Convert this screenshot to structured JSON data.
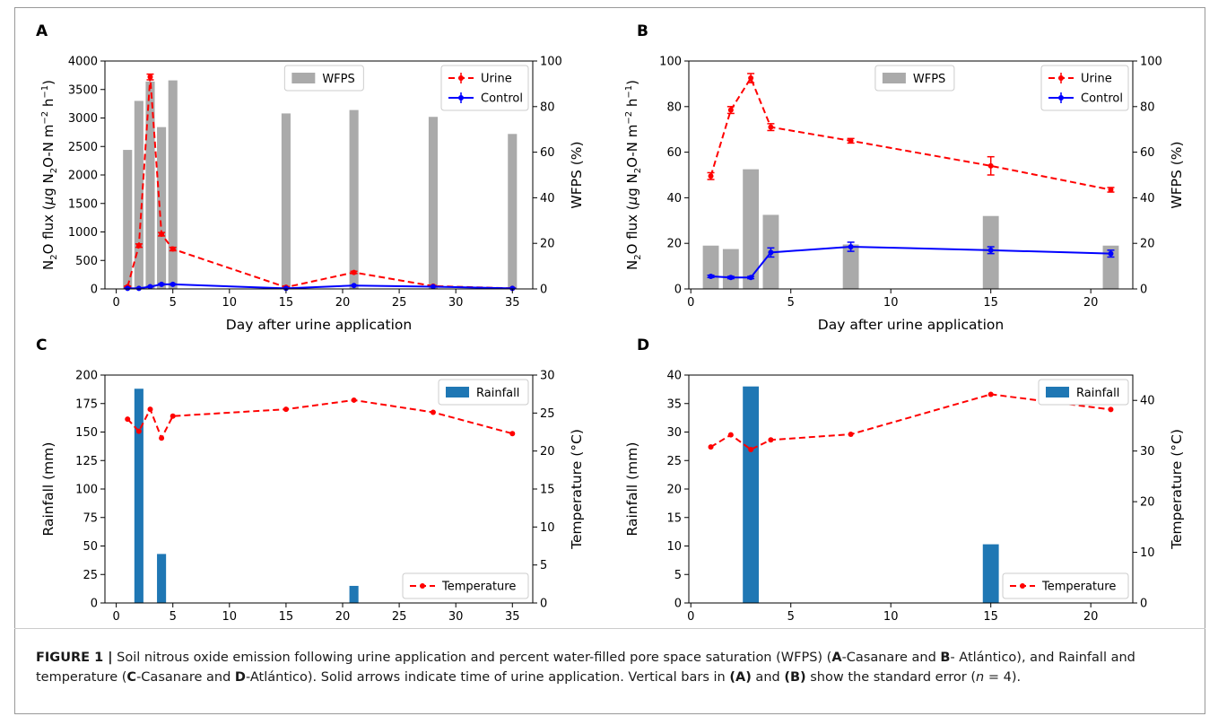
{
  "caption": {
    "label": "FIGURE 1 |",
    "text_1": " Soil nitrous oxide emission following urine application and percent water-filled pore space saturation (WFPS) (",
    "a": "A",
    "text_2": "-Casanare and ",
    "b": "B",
    "text_3": "- Atlántico), and Rainfall and temperature (",
    "c": "C",
    "text_4": "-Casanare and ",
    "d": "D",
    "text_5": "-Atlántico). Solid arrows indicate time of urine application. Vertical bars in ",
    "pa": "(A)",
    "text_6": " and ",
    "pb": "(B)",
    "text_7": " show the standard error (",
    "n": "n",
    "text_8": " = 4)."
  },
  "chart_data": [
    {
      "panel": "A",
      "type": "line",
      "xlabel": "Day after urine application",
      "ylabel": "N2O flux (μg N2O-N m−2 h−1)",
      "y2label": "WFPS (%)",
      "xlim": [
        -1,
        36.8
      ],
      "ylim": [
        0,
        4000
      ],
      "y2lim": [
        0,
        100
      ],
      "xticks": [
        0,
        5,
        10,
        15,
        20,
        25,
        30,
        35
      ],
      "yticks": [
        0,
        500,
        1000,
        1500,
        2000,
        2500,
        3000,
        3500,
        4000
      ],
      "y2ticks": [
        0,
        20,
        40,
        60,
        80,
        100
      ],
      "bars": {
        "name": "WFPS",
        "axis": "right",
        "color": "#aaaaaa",
        "x": [
          1,
          2,
          3,
          4,
          5,
          15,
          21,
          28,
          35
        ],
        "values": [
          61,
          82.5,
          91,
          71,
          91.5,
          77,
          78.5,
          75.5,
          68
        ]
      },
      "series": [
        {
          "name": "Urine",
          "color": "#ff0000",
          "dashed": true,
          "x": [
            1,
            2,
            3,
            4,
            5,
            15,
            21,
            28,
            35
          ],
          "values": [
            40,
            760,
            3720,
            960,
            700,
            30,
            290,
            50,
            10
          ],
          "errors": [
            10,
            30,
            50,
            30,
            30,
            10,
            20,
            10,
            5
          ]
        },
        {
          "name": "Control",
          "color": "#0000ff",
          "dashed": false,
          "x": [
            1,
            2,
            3,
            4,
            5,
            15,
            21,
            28,
            35
          ],
          "values": [
            10,
            10,
            40,
            80,
            80,
            10,
            60,
            40,
            10
          ],
          "errors": [
            5,
            5,
            5,
            10,
            10,
            5,
            5,
            5,
            5
          ]
        }
      ],
      "legend_bars": "top-center",
      "legend_lines": "top-right"
    },
    {
      "panel": "B",
      "type": "line",
      "xlabel": "Day after urine application",
      "ylabel": "N2O flux (μg N2O-N m−2 h−1)",
      "y2label": "WFPS (%)",
      "xlim": [
        -0.1,
        22.1
      ],
      "ylim": [
        0,
        100
      ],
      "y2lim": [
        0,
        100
      ],
      "xticks": [
        0,
        5,
        10,
        15,
        20
      ],
      "yticks": [
        0,
        20,
        40,
        60,
        80,
        100
      ],
      "y2ticks": [
        0,
        20,
        40,
        60,
        80,
        100
      ],
      "bars": {
        "name": "WFPS",
        "axis": "right",
        "color": "#aaaaaa",
        "x": [
          1,
          2,
          3,
          4,
          8,
          15,
          21
        ],
        "values": [
          19,
          17.5,
          52.5,
          32.5,
          19.5,
          32,
          19
        ]
      },
      "series": [
        {
          "name": "Urine",
          "color": "#ff0000",
          "dashed": true,
          "x": [
            1,
            2,
            3,
            4,
            8,
            15,
            21
          ],
          "values": [
            49.5,
            78.5,
            92.5,
            71,
            65,
            54,
            43.5
          ],
          "errors": [
            1.5,
            1.5,
            2,
            1.5,
            1,
            4,
            1
          ]
        },
        {
          "name": "Control",
          "color": "#0000ff",
          "dashed": false,
          "x": [
            1,
            2,
            3,
            4,
            8,
            15,
            21
          ],
          "values": [
            5.5,
            5,
            5,
            16,
            18.5,
            17,
            15.5
          ],
          "errors": [
            0.5,
            0.5,
            0.5,
            2,
            2,
            1.5,
            1.5
          ]
        }
      ],
      "legend_bars": "top-center",
      "legend_lines": "top-right"
    },
    {
      "panel": "C",
      "type": "bar",
      "xlabel": "Day after urine application",
      "ylabel": "Rainfall (mm)",
      "y2label": "Temperature (°C)",
      "xlim": [
        -1,
        36.8
      ],
      "ylim": [
        0,
        200
      ],
      "y2lim": [
        0,
        30
      ],
      "xticks": [
        0,
        5,
        10,
        15,
        20,
        25,
        30,
        35
      ],
      "yticks": [
        0,
        25,
        50,
        75,
        100,
        125,
        150,
        175,
        200
      ],
      "y2ticks": [
        0,
        5,
        10,
        15,
        20,
        25,
        30
      ],
      "bars": {
        "name": "Rainfall",
        "axis": "left",
        "color": "#1f77b4",
        "x": [
          2,
          4,
          21
        ],
        "values": [
          188,
          43,
          15
        ]
      },
      "series": [
        {
          "name": "Temperature",
          "axis": "right",
          "color": "#ff0000",
          "dashed": true,
          "x": [
            1,
            2,
            3,
            4,
            5,
            15,
            21,
            28,
            35
          ],
          "values": [
            24.2,
            22.6,
            25.5,
            21.7,
            24.6,
            25.5,
            26.7,
            25.1,
            22.3
          ]
        }
      ],
      "legend_bars": "top-right",
      "legend_lines": "bottom-right"
    },
    {
      "panel": "D",
      "type": "bar",
      "xlabel": "Day after urine application",
      "ylabel": "Rainfall (mm)",
      "y2label": "Temperature (°C)",
      "xlim": [
        -0.1,
        22.1
      ],
      "ylim": [
        0,
        40
      ],
      "y2lim": [
        0,
        45
      ],
      "xticks": [
        0,
        5,
        10,
        15,
        20
      ],
      "yticks": [
        0,
        5,
        10,
        15,
        20,
        25,
        30,
        35,
        40
      ],
      "y2ticks": [
        0,
        10,
        20,
        30,
        40
      ],
      "bars": {
        "name": "Rainfall",
        "axis": "left",
        "color": "#1f77b4",
        "x": [
          3,
          15
        ],
        "values": [
          38,
          10.3
        ]
      },
      "series": [
        {
          "name": "Temperature",
          "axis": "right",
          "color": "#ff0000",
          "dashed": true,
          "x": [
            1,
            2,
            3,
            4,
            8,
            15,
            21
          ],
          "values": [
            30.8,
            33.2,
            30.3,
            32.2,
            33.3,
            41.2,
            38.2
          ]
        }
      ],
      "legend_bars": "top-right",
      "legend_lines": "bottom-right"
    }
  ]
}
